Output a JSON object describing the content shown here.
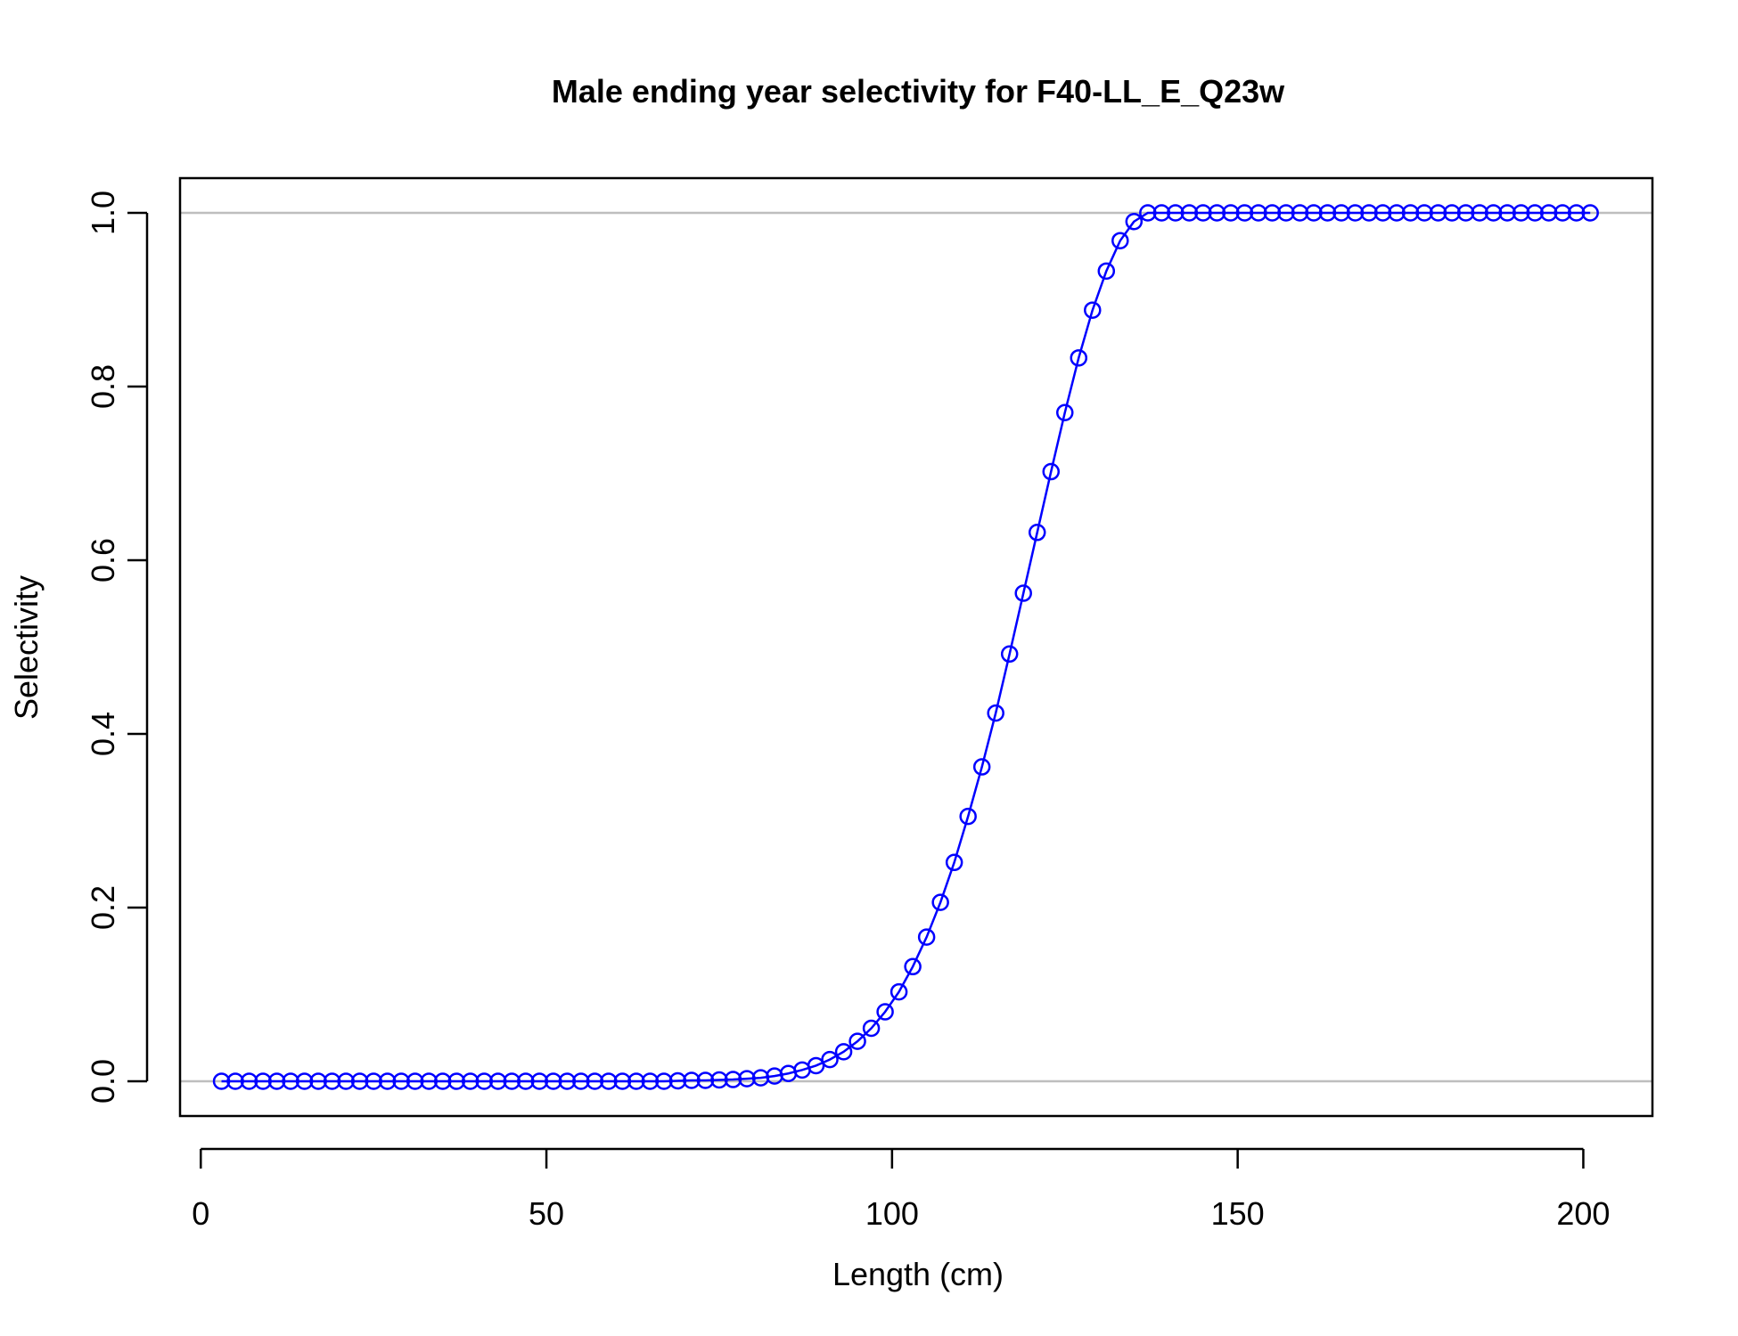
{
  "chart_data": {
    "type": "line",
    "title": "Male ending year selectivity for F40-LL_E_Q23w",
    "xlabel": "Length (cm)",
    "ylabel": "Selectivity",
    "xlim": [
      -3,
      210
    ],
    "ylim": [
      -0.04,
      1.04
    ],
    "xticks": [
      0,
      50,
      100,
      150,
      200
    ],
    "yticks": [
      0.0,
      0.2,
      0.4,
      0.6,
      0.8,
      1.0
    ],
    "xtick_labels": [
      "0",
      "50",
      "100",
      "150",
      "200"
    ],
    "ytick_labels": [
      "0.0",
      "0.2",
      "0.4",
      "0.6",
      "0.8",
      "1.0"
    ],
    "reference_lines_y": [
      0,
      1
    ],
    "grid": false,
    "legend": "none",
    "colors": {
      "series": "#0000ff",
      "reference": "#bebebe",
      "axes": "#000000"
    },
    "marker": "open-circle",
    "series": [
      {
        "x": [
          3,
          5,
          7,
          9,
          11,
          13,
          15,
          17,
          19,
          21,
          23,
          25,
          27,
          29,
          31,
          33,
          35,
          37,
          39,
          41,
          43,
          45,
          47,
          49,
          51,
          53,
          55,
          57,
          59,
          61,
          63,
          65,
          67,
          69,
          71,
          73,
          75,
          77,
          79,
          81,
          83,
          85,
          87,
          89,
          91,
          93,
          95,
          97,
          99,
          101,
          103,
          105,
          107,
          109,
          111,
          113,
          115,
          117,
          119,
          121,
          123,
          125,
          127,
          129,
          131,
          133,
          135,
          137,
          139,
          141,
          143,
          145,
          147,
          149,
          151,
          153,
          155,
          157,
          159,
          161,
          163,
          165,
          167,
          169,
          171,
          173,
          175,
          177,
          179,
          181,
          183,
          185,
          187,
          189,
          191,
          193,
          195,
          197,
          199,
          201
        ],
        "y": [
          0,
          0,
          0,
          0,
          0,
          0,
          0,
          0,
          0,
          0,
          0,
          0,
          0,
          0,
          0,
          0,
          0,
          0,
          0,
          0,
          0,
          0,
          0,
          0,
          0,
          0,
          0,
          0,
          0,
          0,
          0,
          0,
          0,
          0.0005,
          0.001,
          0.001,
          0.0015,
          0.002,
          0.003,
          0.004,
          0.006,
          0.009,
          0.013,
          0.018,
          0.025,
          0.034,
          0.046,
          0.061,
          0.08,
          0.103,
          0.132,
          0.166,
          0.206,
          0.252,
          0.305,
          0.362,
          0.424,
          0.492,
          0.562,
          0.632,
          0.702,
          0.77,
          0.833,
          0.888,
          0.933,
          0.968,
          0.99,
          1,
          1,
          1,
          1,
          1,
          1,
          1,
          1,
          1,
          1,
          1,
          1,
          1,
          1,
          1,
          1,
          1,
          1,
          1,
          1,
          1,
          1,
          1,
          1,
          1,
          1,
          1,
          1,
          1,
          1,
          1,
          1,
          1
        ]
      }
    ]
  }
}
